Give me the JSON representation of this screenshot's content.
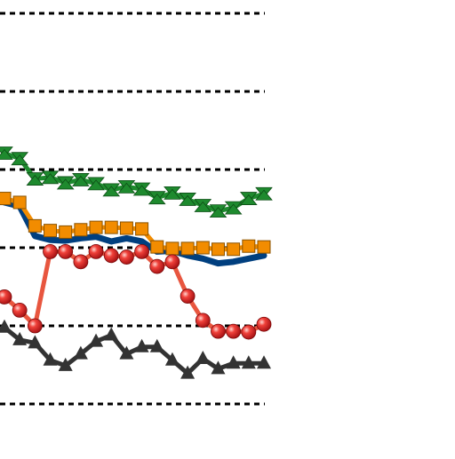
{
  "chart_data": {
    "type": "line",
    "title": "",
    "xlabel": "",
    "ylabel": "",
    "x": [
      1,
      2,
      3,
      4,
      5,
      6,
      7,
      8,
      9,
      10,
      11,
      12,
      13,
      14,
      15,
      16,
      17,
      18
    ],
    "ylim": [
      0,
      5
    ],
    "grid": true,
    "series": [
      {
        "color": "#1e8a2e",
        "marker": "hourglass",
        "values": [
          3.21,
          3.14,
          2.88,
          2.9,
          2.83,
          2.87,
          2.82,
          2.74,
          2.78,
          2.75,
          2.64,
          2.7,
          2.62,
          2.54,
          2.47,
          2.51,
          2.63,
          2.69
        ]
      },
      {
        "color": "#003f7f",
        "marker": "none",
        "values": [
          2.58,
          2.53,
          2.15,
          2.1,
          2.09,
          2.12,
          2.14,
          2.08,
          2.12,
          2.08,
          1.95,
          1.96,
          1.9,
          1.86,
          1.8,
          1.82,
          1.86,
          1.9
        ]
      },
      {
        "color": "#f28c00",
        "marker": "square",
        "values": [
          2.63,
          2.58,
          2.28,
          2.22,
          2.2,
          2.23,
          2.26,
          2.26,
          2.25,
          2.24,
          2.01,
          1.99,
          1.99,
          2.0,
          1.98,
          1.98,
          2.02,
          2.01
        ]
      },
      {
        "color": "#e8563f",
        "marker": "sphere",
        "values": [
          1.37,
          1.2,
          1.0,
          1.95,
          1.95,
          1.82,
          1.95,
          1.9,
          1.88,
          1.95,
          1.76,
          1.82,
          1.38,
          1.07,
          0.93,
          0.93,
          0.92,
          1.02
        ]
      },
      {
        "color": "#333333",
        "marker": "triangle",
        "values": [
          0.98,
          0.82,
          0.78,
          0.56,
          0.49,
          0.64,
          0.8,
          0.88,
          0.64,
          0.73,
          0.73,
          0.56,
          0.39,
          0.58,
          0.45,
          0.52,
          0.52,
          0.52
        ]
      }
    ]
  }
}
